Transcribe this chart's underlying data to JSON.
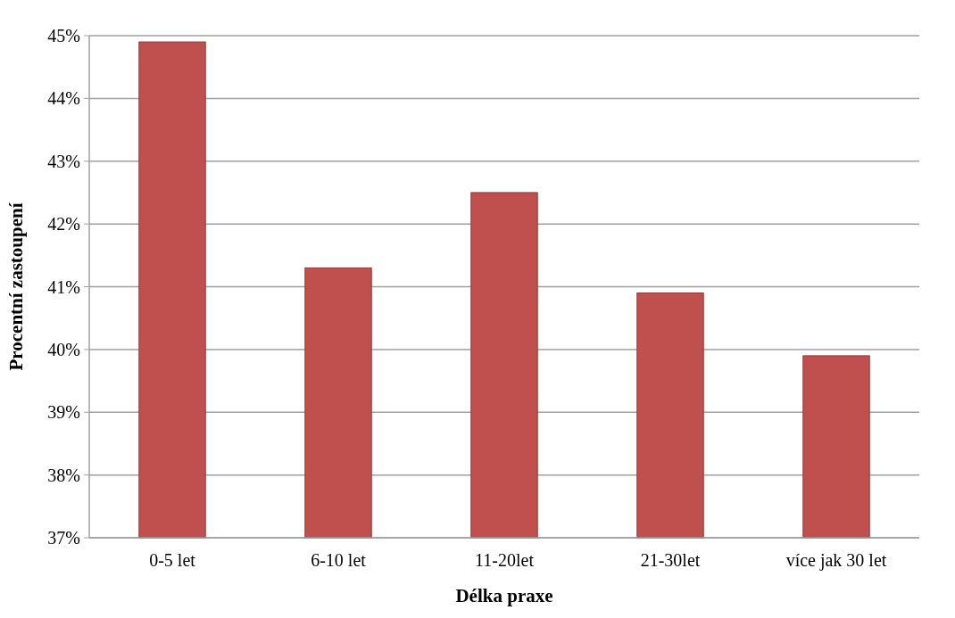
{
  "chart_data": {
    "type": "bar",
    "xlabel": "Délka praxe",
    "ylabel": "Procentní zastoupení",
    "categories": [
      "0-5 let",
      "6-10 let",
      "11-20let",
      "21-30let",
      "více jak 30 let"
    ],
    "values": [
      44.9,
      41.3,
      42.5,
      40.9,
      39.9
    ],
    "color": "#c0504d",
    "ylim": [
      37,
      45
    ],
    "yticks": [
      {
        "value": 37,
        "label": "37%"
      },
      {
        "value": 38,
        "label": "38%"
      },
      {
        "value": 39,
        "label": "39%"
      },
      {
        "value": 40,
        "label": "40%"
      },
      {
        "value": 41,
        "label": "41%"
      },
      {
        "value": 42,
        "label": "42%"
      },
      {
        "value": 43,
        "label": "43%"
      },
      {
        "value": 44,
        "label": "44%"
      },
      {
        "value": 45,
        "label": "45%"
      }
    ],
    "grid": "y"
  }
}
